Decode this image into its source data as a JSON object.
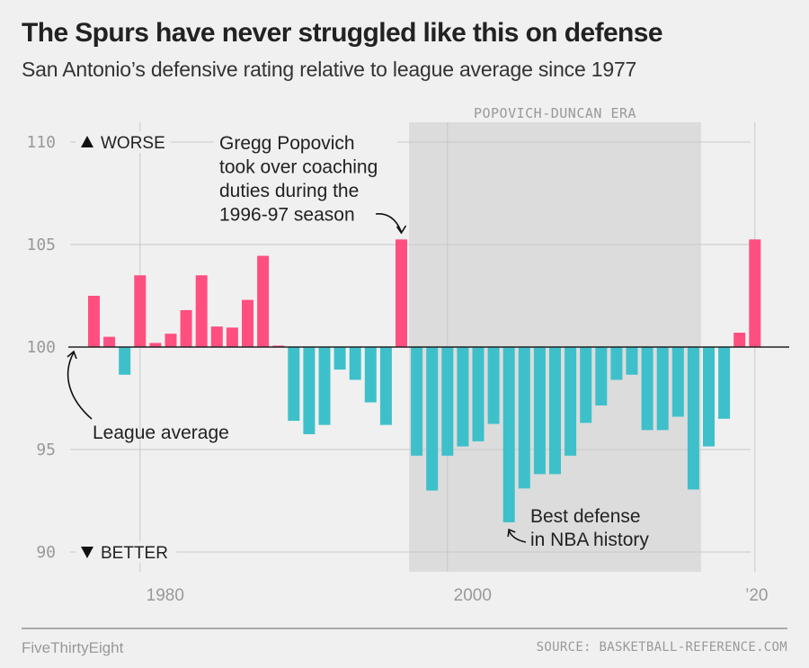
{
  "header": {
    "title": "The Spurs have never struggled like this on defense",
    "subtitle": "San Antonio’s defensive rating relative to league average since 1977"
  },
  "footer": {
    "brand": "FiveThirtyEight",
    "source": "SOURCE: BASKETBALL-REFERENCE.COM"
  },
  "colors": {
    "worse": "#ff4f80",
    "better": "#3ec0ca",
    "background": "#f0f0f0",
    "era_shade": "#dcdcdc",
    "gridline": "#cccccc",
    "baseline": "#222222"
  },
  "chart_data": {
    "type": "bar",
    "title": "The Spurs have never struggled like this on defense",
    "subtitle": "San Antonio’s defensive rating relative to league average since 1977",
    "xlabel": "",
    "ylabel": "",
    "baseline": 100,
    "ylim": [
      89,
      111
    ],
    "yticks": [
      110,
      105,
      100,
      95,
      90
    ],
    "xticks": [
      {
        "year": 1980,
        "label": "1980"
      },
      {
        "year": 2000,
        "label": "2000"
      },
      {
        "year": 2020,
        "label": "’20"
      }
    ],
    "direction_labels": {
      "up": "WORSE",
      "down": "BETTER"
    },
    "grid": true,
    "x": [
      1977,
      1978,
      1979,
      1980,
      1981,
      1982,
      1983,
      1984,
      1985,
      1986,
      1987,
      1988,
      1989,
      1990,
      1991,
      1992,
      1993,
      1994,
      1995,
      1996,
      1997,
      1998,
      1999,
      2000,
      2001,
      2002,
      2003,
      2004,
      2005,
      2006,
      2007,
      2008,
      2009,
      2010,
      2011,
      2012,
      2013,
      2014,
      2015,
      2016,
      2017,
      2018,
      2019,
      2020
    ],
    "values": [
      102.5,
      100.5,
      98.65,
      103.5,
      100.2,
      100.65,
      101.8,
      103.5,
      101.0,
      100.95,
      102.3,
      104.45,
      100.07,
      96.4,
      95.75,
      96.2,
      98.9,
      98.4,
      97.3,
      96.2,
      105.25,
      94.7,
      93.0,
      94.7,
      95.15,
      95.4,
      96.25,
      91.45,
      93.1,
      93.8,
      93.8,
      94.7,
      96.3,
      97.15,
      98.4,
      98.65,
      95.95,
      95.95,
      96.6,
      93.05,
      95.15,
      96.5,
      100.7,
      105.25
    ],
    "shaded_region": {
      "label": "POPOVICH-DUNCAN ERA",
      "from_year": 1998,
      "to_year": 2016
    },
    "annotations": [
      {
        "name": "popovich",
        "lines": [
          "Gregg Popovich",
          "took over coaching",
          "duties during the",
          "1996-97 season"
        ],
        "target_year": 1997
      },
      {
        "name": "league-average",
        "lines": [
          "League average"
        ],
        "target_value": 100
      },
      {
        "name": "best-defense",
        "lines": [
          "Best defense",
          "in NBA history"
        ],
        "target_year": 2004
      }
    ]
  }
}
